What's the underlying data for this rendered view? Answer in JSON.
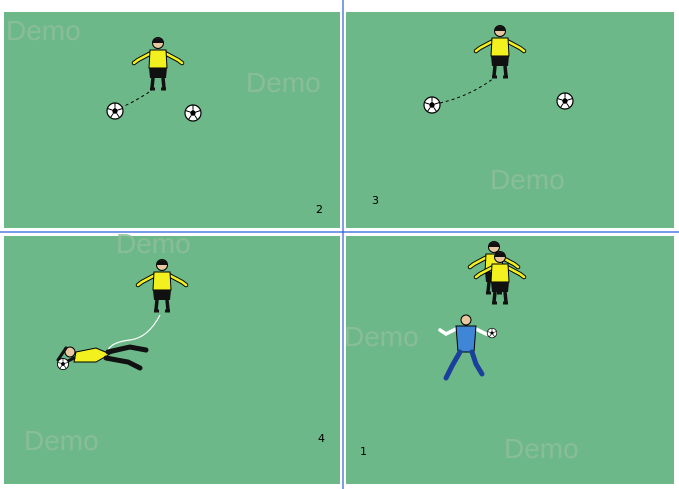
{
  "watermark": "Demo",
  "panels": [
    {
      "number": "2"
    },
    {
      "number": "3"
    },
    {
      "number": "4"
    },
    {
      "number": "1"
    }
  ],
  "colors": {
    "field": "#6cb889",
    "divider": "#2a5fd6",
    "jersey_yellow": "#f2f01f",
    "jersey_blue": "#3f86d6",
    "shorts": "#111111"
  }
}
